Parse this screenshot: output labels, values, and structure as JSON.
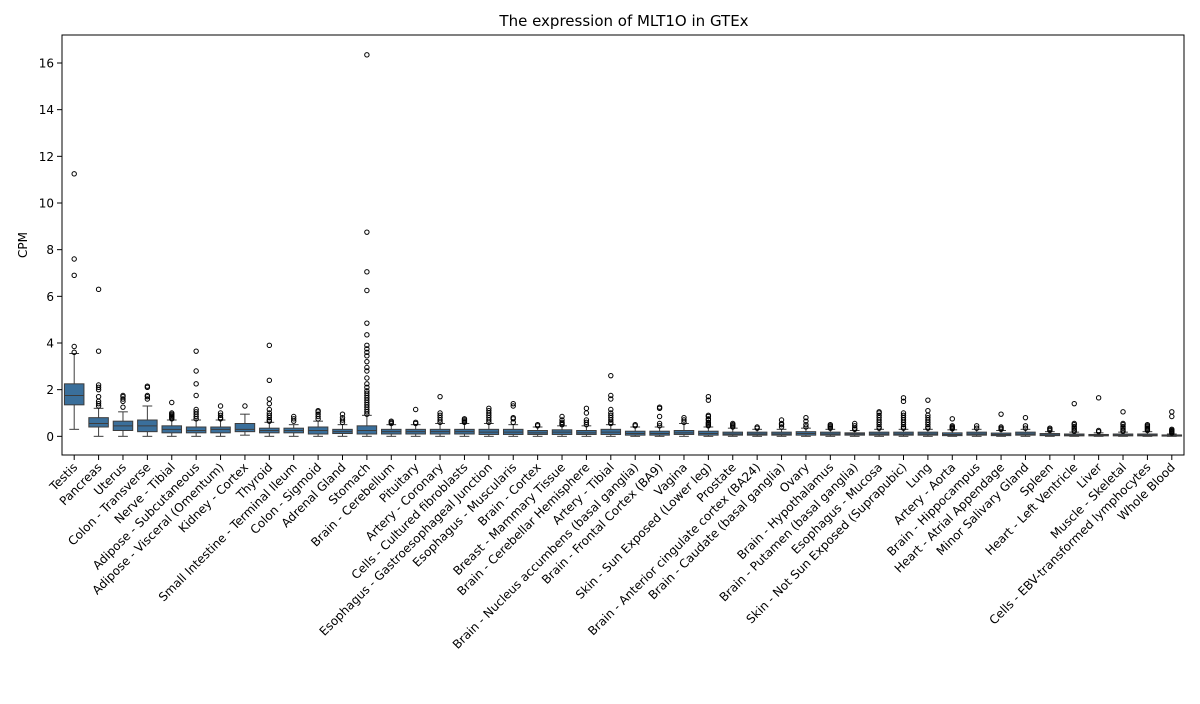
{
  "chart_data": {
    "type": "box",
    "title": "The expression of MLT1O in GTEx",
    "xlabel": "",
    "ylabel": "CPM",
    "ylim": [
      -0.8,
      17.2
    ],
    "yticks": [
      0,
      2,
      4,
      6,
      8,
      10,
      12,
      14,
      16
    ],
    "grid": false,
    "box_color": "#3a6f9b",
    "categories": [
      "Testis",
      "Pancreas",
      "Uterus",
      "Colon - Transverse",
      "Nerve - Tibial",
      "Adipose - Subcutaneous",
      "Adipose - Visceral (Omentum)",
      "Kidney - Cortex",
      "Thyroid",
      "Small Intestine - Terminal Ileum",
      "Colon - Sigmoid",
      "Adrenal Gland",
      "Stomach",
      "Brain - Cerebellum",
      "Pituitary",
      "Artery - Coronary",
      "Cells - Cultured fibroblasts",
      "Esophagus - Gastroesophageal Junction",
      "Esophagus - Muscularis",
      "Brain - Cortex",
      "Breast - Mammary Tissue",
      "Brain - Cerebellar Hemisphere",
      "Artery - Tibial",
      "Brain - Nucleus accumbens (basal ganglia)",
      "Brain - Frontal Cortex (BA9)",
      "Vagina",
      "Skin - Sun Exposed (Lower leg)",
      "Prostate",
      "Brain - Anterior cingulate cortex (BA24)",
      "Brain - Caudate (basal ganglia)",
      "Ovary",
      "Brain - Hypothalamus",
      "Brain - Putamen (basal ganglia)",
      "Esophagus - Mucosa",
      "Skin - Not Sun Exposed (Suprapubic)",
      "Lung",
      "Artery - Aorta",
      "Brain - Hippocampus",
      "Heart - Atrial Appendage",
      "Minor Salivary Gland",
      "Spleen",
      "Heart - Left Ventricle",
      "Liver",
      "Muscle - Skeletal",
      "Cells - EBV-transformed lymphocytes",
      "Whole Blood"
    ],
    "boxes": [
      {
        "whislo": 0.3,
        "q1": 1.35,
        "med": 1.75,
        "q3": 2.25,
        "whishi": 3.55,
        "fliers": [
          3.6,
          3.85,
          6.9,
          7.6,
          11.25
        ]
      },
      {
        "whislo": 0.0,
        "q1": 0.4,
        "med": 0.55,
        "q3": 0.8,
        "whishi": 1.2,
        "fliers": [
          1.3,
          1.4,
          1.5,
          1.7,
          2.0,
          2.1,
          2.2,
          3.65,
          6.3
        ]
      },
      {
        "whislo": 0.0,
        "q1": 0.25,
        "med": 0.45,
        "q3": 0.65,
        "whishi": 1.05,
        "fliers": [
          1.25,
          1.5,
          1.6,
          1.7,
          1.75
        ]
      },
      {
        "whislo": 0.0,
        "q1": 0.2,
        "med": 0.45,
        "q3": 0.7,
        "whishi": 1.3,
        "fliers": [
          1.6,
          1.7,
          1.75,
          2.1,
          2.15
        ]
      },
      {
        "whislo": 0.0,
        "q1": 0.15,
        "med": 0.3,
        "q3": 0.45,
        "whishi": 0.7,
        "fliers": [
          0.75,
          0.8,
          0.85,
          0.9,
          0.95,
          1.0,
          1.45
        ]
      },
      {
        "whislo": 0.0,
        "q1": 0.15,
        "med": 0.25,
        "q3": 0.4,
        "whishi": 0.7,
        "fliers": [
          0.75,
          0.85,
          0.95,
          1.05,
          1.15,
          1.75,
          2.25,
          2.8,
          3.65
        ]
      },
      {
        "whislo": 0.0,
        "q1": 0.15,
        "med": 0.3,
        "q3": 0.4,
        "whishi": 0.7,
        "fliers": [
          0.75,
          0.8,
          0.9,
          1.0,
          1.3
        ]
      },
      {
        "whislo": 0.05,
        "q1": 0.2,
        "med": 0.3,
        "q3": 0.55,
        "whishi": 0.95,
        "fliers": [
          1.3
        ]
      },
      {
        "whislo": 0.0,
        "q1": 0.15,
        "med": 0.25,
        "q3": 0.35,
        "whishi": 0.6,
        "fliers": [
          0.65,
          0.7,
          0.8,
          0.9,
          1.0,
          1.15,
          1.4,
          1.6,
          2.4,
          3.9
        ]
      },
      {
        "whislo": 0.0,
        "q1": 0.15,
        "med": 0.25,
        "q3": 0.35,
        "whishi": 0.5,
        "fliers": [
          0.65,
          0.75,
          0.85
        ]
      },
      {
        "whislo": 0.0,
        "q1": 0.1,
        "med": 0.25,
        "q3": 0.4,
        "whishi": 0.65,
        "fliers": [
          0.75,
          0.85,
          0.95,
          1.05,
          1.1
        ]
      },
      {
        "whislo": 0.0,
        "q1": 0.12,
        "med": 0.2,
        "q3": 0.3,
        "whishi": 0.5,
        "fliers": [
          0.6,
          0.7,
          0.8,
          0.95
        ]
      },
      {
        "whislo": 0.0,
        "q1": 0.1,
        "med": 0.25,
        "q3": 0.45,
        "whishi": 0.9,
        "fliers": [
          0.95,
          1.05,
          1.15,
          1.25,
          1.35,
          1.45,
          1.55,
          1.65,
          1.75,
          1.85,
          1.95,
          2.1,
          2.25,
          2.5,
          2.8,
          2.95,
          3.2,
          3.45,
          3.6,
          3.75,
          3.9,
          4.35,
          4.85,
          6.25,
          7.05,
          8.75,
          16.35
        ]
      },
      {
        "whislo": 0.0,
        "q1": 0.1,
        "med": 0.2,
        "q3": 0.3,
        "whishi": 0.5,
        "fliers": [
          0.55,
          0.6,
          0.65
        ]
      },
      {
        "whislo": 0.0,
        "q1": 0.1,
        "med": 0.2,
        "q3": 0.3,
        "whishi": 0.5,
        "fliers": [
          0.55,
          0.6,
          1.15
        ]
      },
      {
        "whislo": 0.0,
        "q1": 0.1,
        "med": 0.2,
        "q3": 0.3,
        "whishi": 0.55,
        "fliers": [
          0.6,
          0.7,
          0.8,
          0.9,
          1.0,
          1.7
        ]
      },
      {
        "whislo": 0.0,
        "q1": 0.1,
        "med": 0.2,
        "q3": 0.3,
        "whishi": 0.55,
        "fliers": [
          0.6,
          0.65,
          0.7,
          0.75
        ]
      },
      {
        "whislo": 0.0,
        "q1": 0.08,
        "med": 0.18,
        "q3": 0.3,
        "whishi": 0.55,
        "fliers": [
          0.6,
          0.7,
          0.8,
          0.9,
          1.0,
          1.1,
          1.2
        ]
      },
      {
        "whislo": 0.0,
        "q1": 0.08,
        "med": 0.18,
        "q3": 0.3,
        "whishi": 0.5,
        "fliers": [
          0.6,
          0.75,
          0.8,
          1.3,
          1.4
        ]
      },
      {
        "whislo": 0.0,
        "q1": 0.08,
        "med": 0.15,
        "q3": 0.25,
        "whishi": 0.4,
        "fliers": [
          0.45,
          0.5
        ]
      },
      {
        "whislo": 0.0,
        "q1": 0.08,
        "med": 0.18,
        "q3": 0.28,
        "whishi": 0.45,
        "fliers": [
          0.5,
          0.55,
          0.6,
          0.7,
          0.85
        ]
      },
      {
        "whislo": 0.0,
        "q1": 0.08,
        "med": 0.15,
        "q3": 0.25,
        "whishi": 0.45,
        "fliers": [
          0.5,
          0.6,
          0.7,
          1.0,
          1.2
        ]
      },
      {
        "whislo": 0.0,
        "q1": 0.08,
        "med": 0.18,
        "q3": 0.3,
        "whishi": 0.5,
        "fliers": [
          0.55,
          0.6,
          0.7,
          0.8,
          0.9,
          1.0,
          1.15,
          1.6,
          1.75,
          2.6
        ]
      },
      {
        "whislo": 0.0,
        "q1": 0.05,
        "med": 0.12,
        "q3": 0.22,
        "whishi": 0.4,
        "fliers": [
          0.45,
          0.5
        ]
      },
      {
        "whislo": 0.0,
        "q1": 0.05,
        "med": 0.12,
        "q3": 0.22,
        "whishi": 0.4,
        "fliers": [
          0.45,
          0.55,
          0.85,
          1.2,
          1.25
        ]
      },
      {
        "whislo": 0.0,
        "q1": 0.08,
        "med": 0.15,
        "q3": 0.25,
        "whishi": 0.55,
        "fliers": [
          0.6,
          0.7,
          0.8
        ]
      },
      {
        "whislo": 0.0,
        "q1": 0.05,
        "med": 0.12,
        "q3": 0.22,
        "whishi": 0.4,
        "fliers": [
          0.45,
          0.5,
          0.55,
          0.6,
          0.7,
          0.75,
          0.85,
          0.9,
          1.55,
          1.7
        ]
      },
      {
        "whislo": 0.0,
        "q1": 0.05,
        "med": 0.1,
        "q3": 0.18,
        "whishi": 0.35,
        "fliers": [
          0.4,
          0.45,
          0.5,
          0.55
        ]
      },
      {
        "whislo": 0.0,
        "q1": 0.05,
        "med": 0.1,
        "q3": 0.18,
        "whishi": 0.3,
        "fliers": [
          0.35,
          0.4
        ]
      },
      {
        "whislo": 0.0,
        "q1": 0.05,
        "med": 0.1,
        "q3": 0.18,
        "whishi": 0.3,
        "fliers": [
          0.4,
          0.5,
          0.55,
          0.7
        ]
      },
      {
        "whislo": 0.0,
        "q1": 0.05,
        "med": 0.12,
        "q3": 0.2,
        "whishi": 0.35,
        "fliers": [
          0.4,
          0.5,
          0.65,
          0.8
        ]
      },
      {
        "whislo": 0.0,
        "q1": 0.05,
        "med": 0.1,
        "q3": 0.18,
        "whishi": 0.3,
        "fliers": [
          0.35,
          0.4,
          0.45,
          0.5
        ]
      },
      {
        "whislo": 0.0,
        "q1": 0.05,
        "med": 0.1,
        "q3": 0.15,
        "whishi": 0.25,
        "fliers": [
          0.3,
          0.35,
          0.45,
          0.55
        ]
      },
      {
        "whislo": 0.0,
        "q1": 0.05,
        "med": 0.1,
        "q3": 0.18,
        "whishi": 0.3,
        "fliers": [
          0.35,
          0.4,
          0.5,
          0.6,
          0.7,
          0.8,
          0.9,
          1.0,
          1.05
        ]
      },
      {
        "whislo": 0.0,
        "q1": 0.05,
        "med": 0.1,
        "q3": 0.18,
        "whishi": 0.3,
        "fliers": [
          0.35,
          0.4,
          0.5,
          0.6,
          0.7,
          0.8,
          0.9,
          1.0,
          1.5,
          1.65
        ]
      },
      {
        "whislo": 0.0,
        "q1": 0.05,
        "med": 0.1,
        "q3": 0.18,
        "whishi": 0.3,
        "fliers": [
          0.35,
          0.4,
          0.5,
          0.6,
          0.7,
          0.8,
          0.9,
          1.1,
          1.55
        ]
      },
      {
        "whislo": 0.0,
        "q1": 0.03,
        "med": 0.08,
        "q3": 0.15,
        "whishi": 0.28,
        "fliers": [
          0.32,
          0.36,
          0.4,
          0.45,
          0.75
        ]
      },
      {
        "whislo": 0.0,
        "q1": 0.05,
        "med": 0.1,
        "q3": 0.18,
        "whishi": 0.3,
        "fliers": [
          0.35,
          0.45
        ]
      },
      {
        "whislo": 0.0,
        "q1": 0.03,
        "med": 0.08,
        "q3": 0.14,
        "whishi": 0.25,
        "fliers": [
          0.3,
          0.35,
          0.4,
          0.95
        ]
      },
      {
        "whislo": 0.0,
        "q1": 0.05,
        "med": 0.1,
        "q3": 0.18,
        "whishi": 0.3,
        "fliers": [
          0.35,
          0.45,
          0.8
        ]
      },
      {
        "whislo": 0.0,
        "q1": 0.03,
        "med": 0.06,
        "q3": 0.12,
        "whishi": 0.2,
        "fliers": [
          0.25,
          0.3,
          0.35
        ]
      },
      {
        "whislo": 0.0,
        "q1": 0.02,
        "med": 0.05,
        "q3": 0.1,
        "whishi": 0.18,
        "fliers": [
          0.22,
          0.28,
          0.35,
          0.42,
          0.5,
          0.55,
          1.4
        ]
      },
      {
        "whislo": 0.0,
        "q1": 0.02,
        "med": 0.05,
        "q3": 0.08,
        "whishi": 0.15,
        "fliers": [
          0.2,
          0.25,
          1.65
        ]
      },
      {
        "whislo": 0.0,
        "q1": 0.02,
        "med": 0.05,
        "q3": 0.1,
        "whishi": 0.18,
        "fliers": [
          0.22,
          0.28,
          0.35,
          0.42,
          0.5,
          0.55,
          1.05
        ]
      },
      {
        "whislo": 0.0,
        "q1": 0.02,
        "med": 0.05,
        "q3": 0.1,
        "whishi": 0.2,
        "fliers": [
          0.25,
          0.3,
          0.35,
          0.4,
          0.45,
          0.5
        ]
      },
      {
        "whislo": 0.0,
        "q1": 0.01,
        "med": 0.03,
        "q3": 0.06,
        "whishi": 0.1,
        "fliers": [
          0.14,
          0.18,
          0.22,
          0.26,
          0.3,
          0.85,
          1.05
        ]
      }
    ]
  }
}
